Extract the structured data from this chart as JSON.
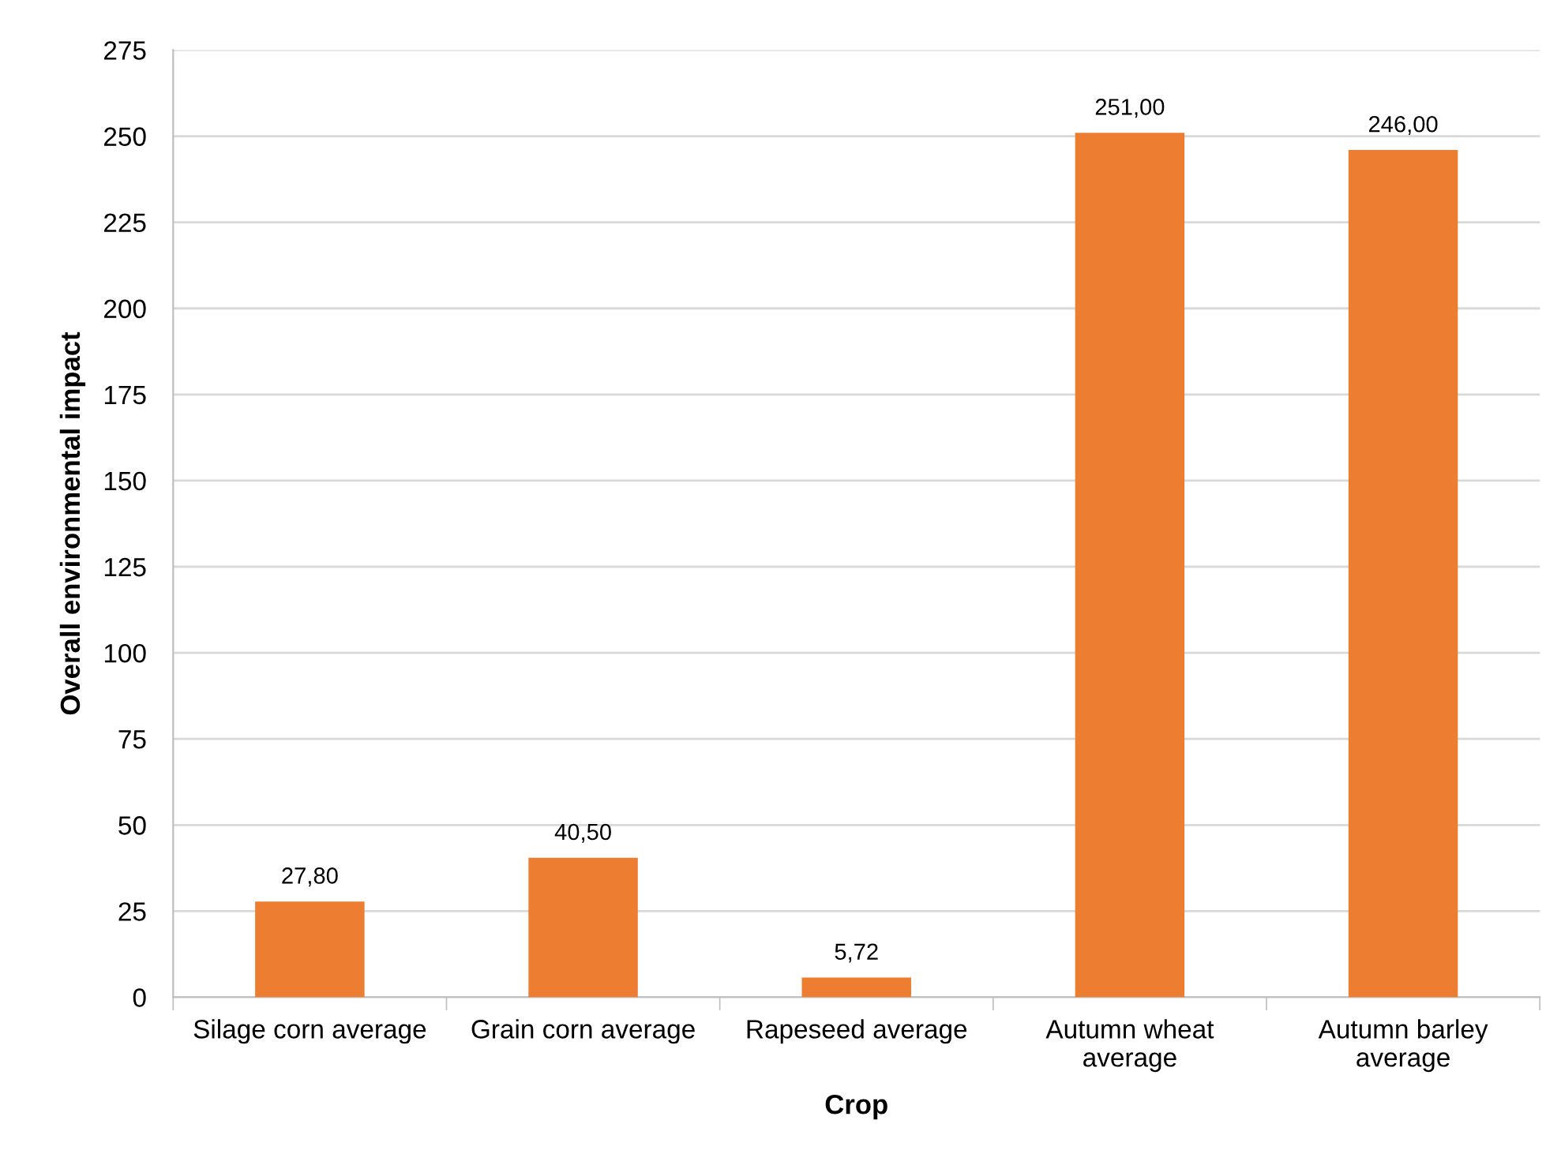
{
  "chart_data": {
    "type": "bar",
    "xlabel": "Crop",
    "ylabel": "Overall environmental impact",
    "categories": [
      "Silage corn average",
      "Grain corn average",
      "Rapeseed average",
      "Autumn wheat average",
      "Autumn barley average"
    ],
    "values": [
      27.8,
      40.5,
      5.72,
      251,
      246
    ],
    "value_labels": [
      "27,80",
      "40,50",
      "5,72",
      "251,00",
      "246,00"
    ],
    "color": "#ed7d31",
    "ylim": [
      0,
      275
    ],
    "yticks": [
      0,
      25,
      50,
      75,
      100,
      125,
      150,
      175,
      200,
      225,
      250,
      275
    ],
    "grid": "y"
  }
}
